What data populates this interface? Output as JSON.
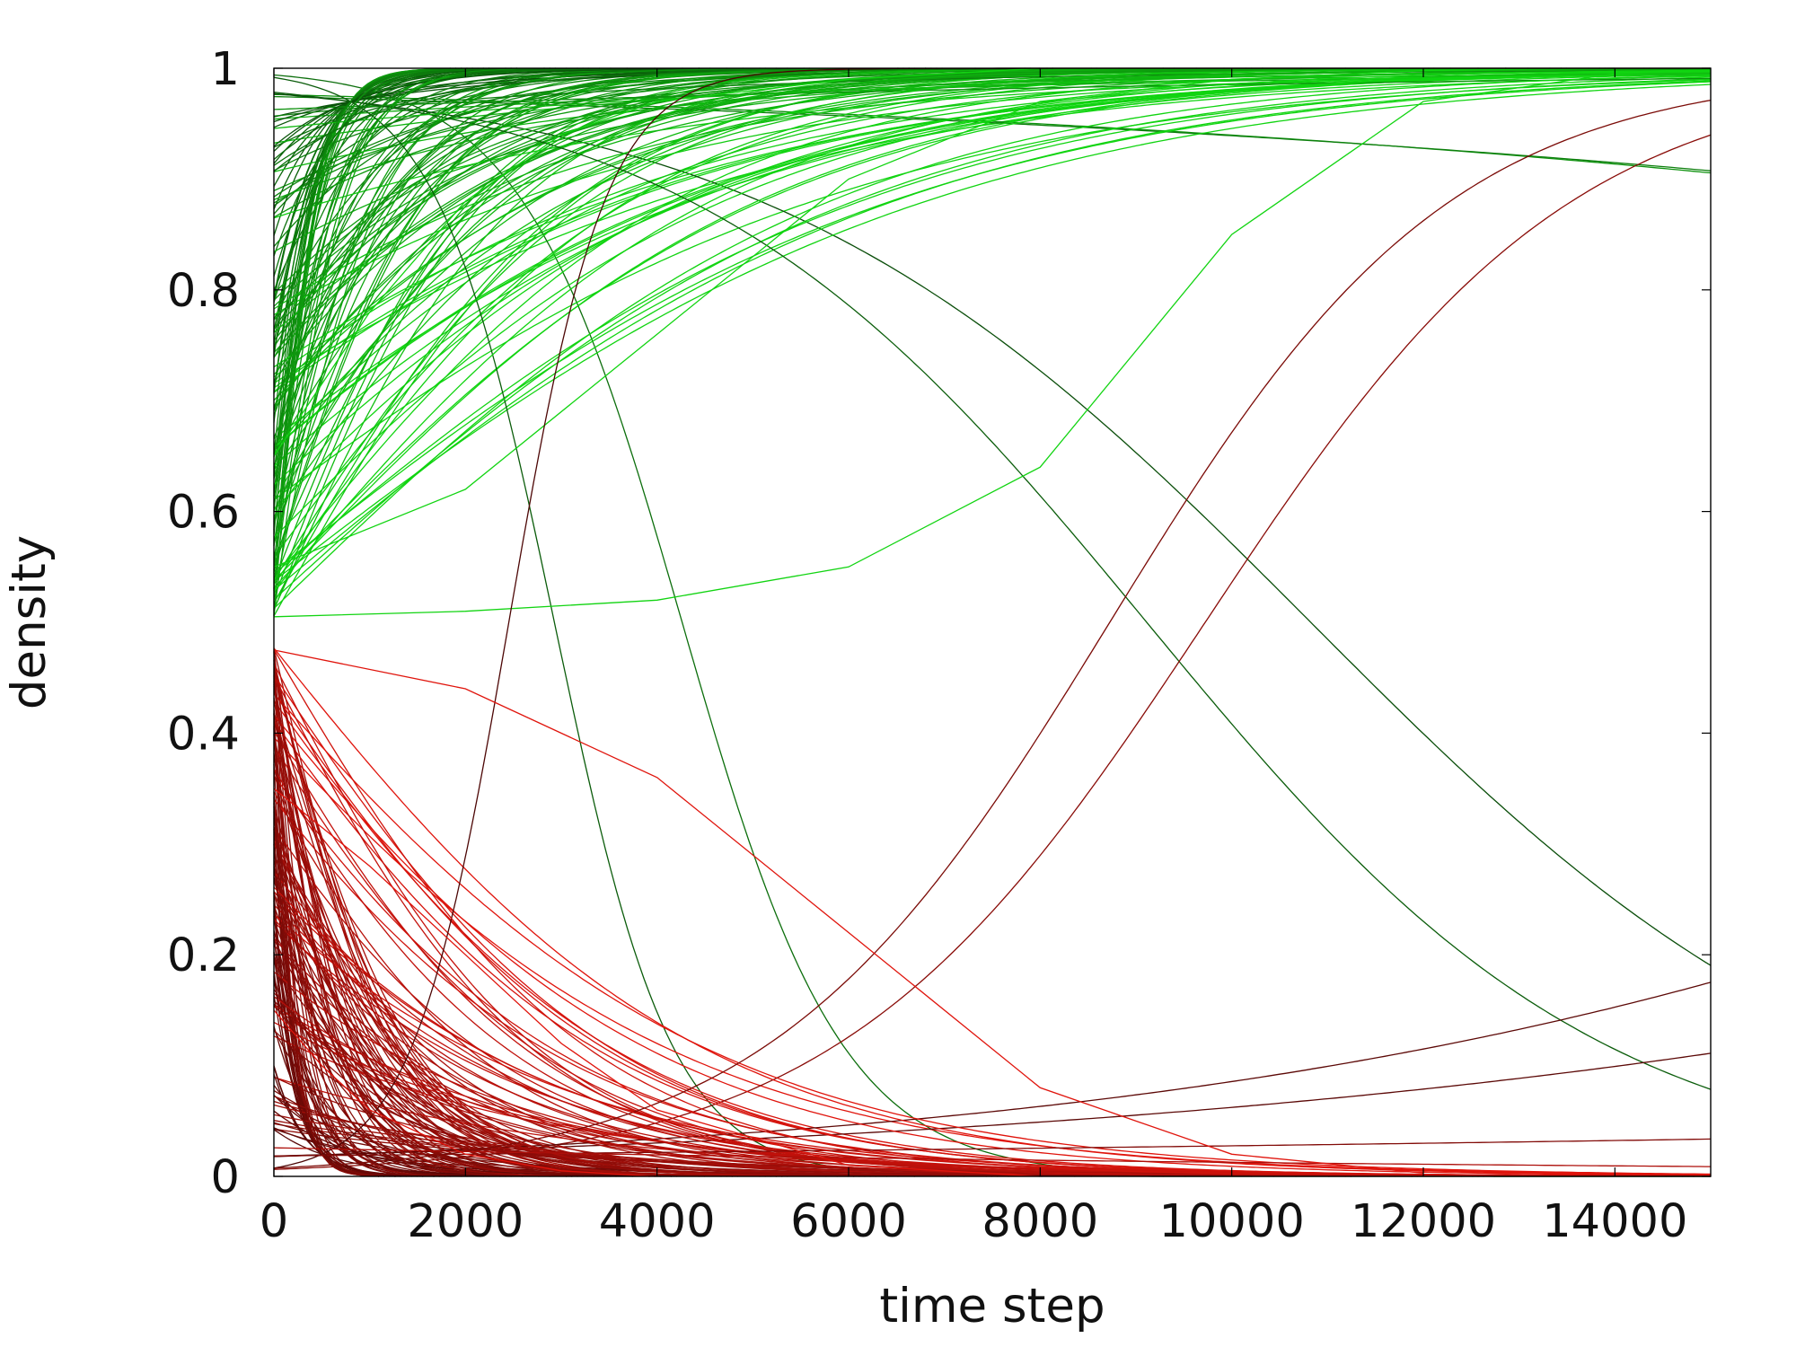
{
  "chart_data": {
    "type": "line",
    "title": "",
    "xlabel": "time step",
    "ylabel": "density",
    "xlim": [
      0,
      15000
    ],
    "ylim": [
      0,
      1
    ],
    "xticks": [
      0,
      2000,
      4000,
      6000,
      8000,
      10000,
      12000,
      14000
    ],
    "xtick_labels": [
      "0",
      "2000",
      "4000",
      "6000",
      "8000",
      "10000",
      "12000",
      "14000"
    ],
    "yticks": [
      0,
      0.2,
      0.4,
      0.6,
      0.8,
      1
    ],
    "ytick_labels": [
      "0",
      "0.2",
      "0.4",
      "0.6",
      "0.8",
      "1"
    ],
    "grid": false,
    "legend": "none",
    "colors": {
      "rising_late": "#11d411",
      "rising_early": "#0a4a0a",
      "falling_late": "#e0140c",
      "falling_early": "#4a0605",
      "frame": "#000000"
    },
    "series_groups": [
      {
        "direction": "rising to 1",
        "initial_range": [
          0.5,
          1.0
        ],
        "final_value": 1.0,
        "latest_half_rise_time": 10500,
        "count": 150,
        "color_note": "dark green for early transitions, bright green for late transitions"
      },
      {
        "direction": "falling to 0",
        "initial_range": [
          0.0,
          0.48
        ],
        "final_value": 0.0,
        "latest_half_fall_time": 6800,
        "count": 150,
        "color_note": "dark red for early transitions, bright red for late transitions"
      }
    ],
    "representative_series": [
      {
        "group": "rising to 1",
        "x": [
          0,
          2000,
          4000,
          6000,
          8000,
          10000,
          12000,
          14000,
          15000
        ],
        "y": [
          0.505,
          0.51,
          0.52,
          0.55,
          0.64,
          0.85,
          0.97,
          0.995,
          0.998
        ]
      },
      {
        "group": "rising to 1",
        "x": [
          0,
          2000,
          4000,
          6000,
          8000,
          10000,
          12000,
          14000
        ],
        "y": [
          0.55,
          0.62,
          0.76,
          0.9,
          0.97,
          0.99,
          0.998,
          1.0
        ]
      },
      {
        "group": "rising to 1",
        "x": [
          0,
          1000,
          2000,
          3000,
          4000,
          6000,
          8000
        ],
        "y": [
          0.65,
          0.78,
          0.88,
          0.94,
          0.97,
          0.99,
          1.0
        ]
      },
      {
        "group": "falling to 0",
        "x": [
          0,
          2000,
          4000,
          6000,
          8000,
          10000,
          12000
        ],
        "y": [
          0.475,
          0.44,
          0.36,
          0.22,
          0.08,
          0.02,
          0.003
        ]
      },
      {
        "group": "falling to 0",
        "x": [
          0,
          1000,
          2000,
          3000,
          4000,
          6000,
          8000
        ],
        "y": [
          0.35,
          0.28,
          0.2,
          0.12,
          0.06,
          0.01,
          0.0
        ]
      },
      {
        "group": "falling to 0",
        "x": [
          0,
          500,
          1000,
          2000,
          3000,
          4000
        ],
        "y": [
          0.15,
          0.1,
          0.06,
          0.02,
          0.005,
          0.0
        ]
      }
    ]
  }
}
